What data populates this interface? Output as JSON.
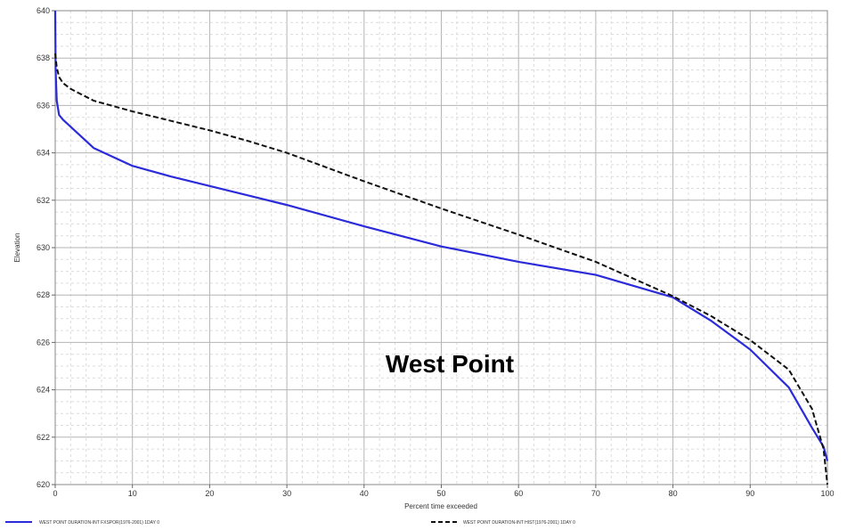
{
  "chart_data": {
    "type": "line",
    "xlabel": "Percent time exceeded",
    "ylabel": "Elevation",
    "xlim": [
      0,
      100
    ],
    "ylim": [
      620,
      640
    ],
    "x_ticks": [
      "0",
      "10",
      "20",
      "30",
      "40",
      "50",
      "60",
      "70",
      "80",
      "90",
      "100"
    ],
    "y_ticks": [
      "620",
      "622",
      "624",
      "626",
      "628",
      "630",
      "632",
      "634",
      "636",
      "638",
      "640"
    ],
    "grid": true,
    "annotation": "West Point",
    "legend_position": "bottom",
    "series": [
      {
        "name": "WEST POINT DURATION-INT FXSPOR(1976-2001) 1DAY 0",
        "color": "#2b2bd9",
        "style": "solid",
        "points": [
          [
            0,
            640
          ],
          [
            0.05,
            637.5
          ],
          [
            0.2,
            636.2
          ],
          [
            0.5,
            635.6
          ],
          [
            1,
            635.4
          ],
          [
            2,
            635.1
          ],
          [
            3,
            634.8
          ],
          [
            5,
            634.2
          ],
          [
            7,
            633.9
          ],
          [
            10,
            633.45
          ],
          [
            15,
            633.0
          ],
          [
            20,
            632.6
          ],
          [
            25,
            632.2
          ],
          [
            30,
            631.8
          ],
          [
            40,
            630.9
          ],
          [
            50,
            630.05
          ],
          [
            60,
            629.4
          ],
          [
            70,
            628.85
          ],
          [
            80,
            627.9
          ],
          [
            85,
            626.9
          ],
          [
            90,
            625.7
          ],
          [
            95,
            624.1
          ],
          [
            98,
            622.4
          ],
          [
            99.5,
            621.6
          ],
          [
            100,
            621.0
          ]
        ]
      },
      {
        "name": "WEST POINT DURATION-INT HIST(1976-2001) 1DAY 0",
        "color": "#111111",
        "style": "dashed",
        "points": [
          [
            0,
            638.2
          ],
          [
            0.2,
            637.6
          ],
          [
            0.5,
            637.2
          ],
          [
            1,
            636.95
          ],
          [
            2,
            636.7
          ],
          [
            5,
            636.2
          ],
          [
            10,
            635.75
          ],
          [
            15,
            635.35
          ],
          [
            20,
            634.95
          ],
          [
            25,
            634.5
          ],
          [
            30,
            634.0
          ],
          [
            40,
            632.8
          ],
          [
            50,
            631.65
          ],
          [
            60,
            630.55
          ],
          [
            70,
            629.4
          ],
          [
            80,
            627.95
          ],
          [
            85,
            627.1
          ],
          [
            90,
            626.1
          ],
          [
            95,
            624.85
          ],
          [
            98,
            623.2
          ],
          [
            99.5,
            621.5
          ],
          [
            100,
            620.0
          ]
        ]
      }
    ]
  }
}
